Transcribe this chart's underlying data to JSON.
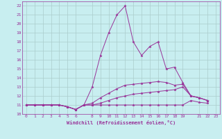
{
  "xlabel": "Windchill (Refroidissement éolien,°C)",
  "bg_color": "#c8eef0",
  "line_color": "#993399",
  "grid_color": "#aacccc",
  "xlim": [
    -0.5,
    23.5
  ],
  "ylim": [
    10,
    22.5
  ],
  "xticks": [
    0,
    1,
    2,
    3,
    4,
    5,
    6,
    8,
    9,
    10,
    11,
    12,
    13,
    14,
    15,
    16,
    17,
    18,
    19,
    21,
    22,
    23
  ],
  "yticks": [
    10,
    11,
    12,
    13,
    14,
    15,
    16,
    17,
    18,
    19,
    20,
    21,
    22
  ],
  "series": [
    [
      11.0,
      11.0,
      11.0,
      11.0,
      11.0,
      10.8,
      10.5,
      11.0,
      11.0,
      11.0,
      11.0,
      11.0,
      11.0,
      11.0,
      11.0,
      11.0,
      11.0,
      11.0,
      11.0,
      11.0,
      11.5,
      11.3,
      11.2
    ],
    [
      11.0,
      11.0,
      11.0,
      11.0,
      11.0,
      10.8,
      10.5,
      11.0,
      11.0,
      11.2,
      11.5,
      11.8,
      12.0,
      12.2,
      12.3,
      12.4,
      12.5,
      12.6,
      12.7,
      13.0,
      12.0,
      11.8,
      11.5
    ],
    [
      11.0,
      11.0,
      11.0,
      11.0,
      11.0,
      10.8,
      10.5,
      11.0,
      11.2,
      11.8,
      12.3,
      12.8,
      13.2,
      13.3,
      13.4,
      13.5,
      13.6,
      13.5,
      13.2,
      13.3,
      12.0,
      11.8,
      11.5
    ],
    [
      11.0,
      11.0,
      11.0,
      11.0,
      11.0,
      10.8,
      10.5,
      11.0,
      13.0,
      16.5,
      19.0,
      21.0,
      22.0,
      18.0,
      16.5,
      17.5,
      18.0,
      15.0,
      15.2,
      13.5,
      12.0,
      11.8,
      11.5
    ]
  ],
  "x_vals": [
    0,
    1,
    2,
    3,
    4,
    5,
    6,
    7,
    8,
    9,
    10,
    11,
    12,
    13,
    14,
    15,
    16,
    17,
    18,
    19,
    20,
    21,
    22
  ]
}
